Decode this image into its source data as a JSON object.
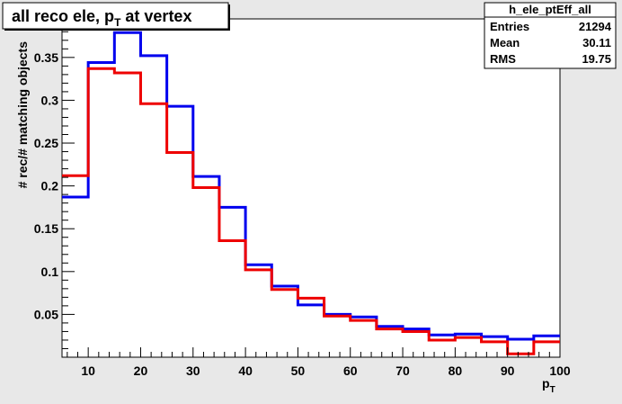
{
  "title": {
    "text": "all reco ele, p",
    "sub": "T",
    "suffix": " at vertex"
  },
  "stats": {
    "name": "h_ele_ptEff_all",
    "rows": [
      {
        "label": "Entries",
        "value": "21294"
      },
      {
        "label": "Mean",
        "value": "30.11"
      },
      {
        "label": "RMS",
        "value": "19.75"
      }
    ]
  },
  "chart_data": {
    "type": "histogram",
    "xlabel": "p",
    "xlabel_sub": "T",
    "ylabel": "# rec/# matching objects",
    "xlim": [
      5,
      100
    ],
    "ylim": [
      0,
      0.395
    ],
    "x_ticks": [
      10,
      20,
      30,
      40,
      50,
      60,
      70,
      80,
      90,
      100
    ],
    "y_ticks": [
      0.05,
      0.1,
      0.15,
      0.2,
      0.25,
      0.3,
      0.35
    ],
    "y_tick_labels": [
      "0.05",
      "0.1",
      "0.15",
      "0.2",
      "0.25",
      "0.3",
      "0.35"
    ],
    "bin_edges": [
      5,
      10,
      15,
      20,
      25,
      30,
      35,
      40,
      45,
      50,
      55,
      60,
      65,
      70,
      75,
      80,
      85,
      90,
      95,
      100
    ],
    "series": [
      {
        "color": "#0000ee",
        "values": [
          0.187,
          0.344,
          0.379,
          0.352,
          0.293,
          0.211,
          0.175,
          0.108,
          0.083,
          0.061,
          0.05,
          0.047,
          0.036,
          0.033,
          0.026,
          0.027,
          0.024,
          0.021,
          0.025
        ]
      },
      {
        "color": "#ee0000",
        "values": [
          0.212,
          0.337,
          0.332,
          0.296,
          0.239,
          0.198,
          0.136,
          0.102,
          0.079,
          0.069,
          0.048,
          0.043,
          0.033,
          0.03,
          0.02,
          0.023,
          0.018,
          0.004,
          0.018
        ]
      }
    ]
  }
}
